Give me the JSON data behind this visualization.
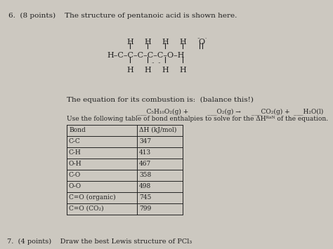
{
  "bg_color": "#ccc8c0",
  "text_color": "#222222",
  "title": "6.  (8 points)    The structure of pentanoic acid is shown here.",
  "eq_intro": "The equation for its combustion is:  (balance this!)",
  "eq_formula": "C₅H₁₀O₂(g) +",
  "eq_o2": "O₂(g) →",
  "eq_co2": "CO₂(g) +",
  "eq_h2o": "H₂O(l)",
  "table_note": "Use the following table of bond enthalpies to solve for the ΔHᴿᵃᴺ of the equation.",
  "table_headers": [
    "Bond",
    "ΔH (kJ/mol)"
  ],
  "table_rows": [
    [
      "C-C",
      "347"
    ],
    [
      "C-H",
      "413"
    ],
    [
      "O-H",
      "467"
    ],
    [
      "C-O",
      "358"
    ],
    [
      "O-O",
      "498"
    ],
    [
      "C=O (organic)",
      "745"
    ],
    [
      "C=O (CO₂)",
      "799"
    ]
  ],
  "footer": "7.  (4 points)    Draw the best Lewis structure of PCl₃",
  "font_size": 7.0,
  "title_fs": 7.5,
  "struct_fs": 8.0
}
